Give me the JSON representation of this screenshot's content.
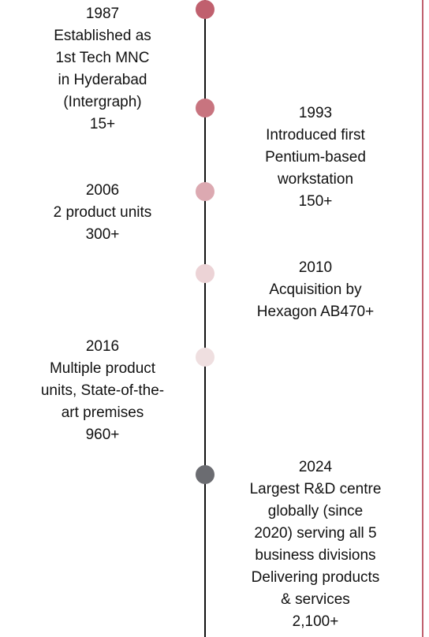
{
  "timeline": {
    "items": [
      {
        "lines": [
          "1987",
          "Established as",
          "1st Tech MNC",
          "in Hyderabad",
          "(Intergraph)",
          "15+"
        ],
        "dot_color": "#c0606e"
      },
      {
        "lines": [
          "1993",
          "Introduced first",
          "Pentium-based",
          "workstation",
          "150+"
        ],
        "dot_color": "#c8747f"
      },
      {
        "lines": [
          "2006",
          "2 product units",
          "300+"
        ],
        "dot_color": "#dca9b1"
      },
      {
        "lines": [
          "2010",
          "Acquisition by",
          "Hexagon AB470+"
        ],
        "dot_color": "#ecd3d6"
      },
      {
        "lines": [
          "2016",
          "Multiple product",
          "units, State-of-the-",
          "art premises",
          "960+"
        ],
        "dot_color": "#efdfe0"
      },
      {
        "lines": [
          "2024",
          "Largest R&D centre",
          "globally (since",
          "2020) serving all 5",
          "business divisions",
          "Delivering products",
          "& services",
          "2,100+"
        ],
        "dot_color": "#6b6c71"
      }
    ]
  }
}
